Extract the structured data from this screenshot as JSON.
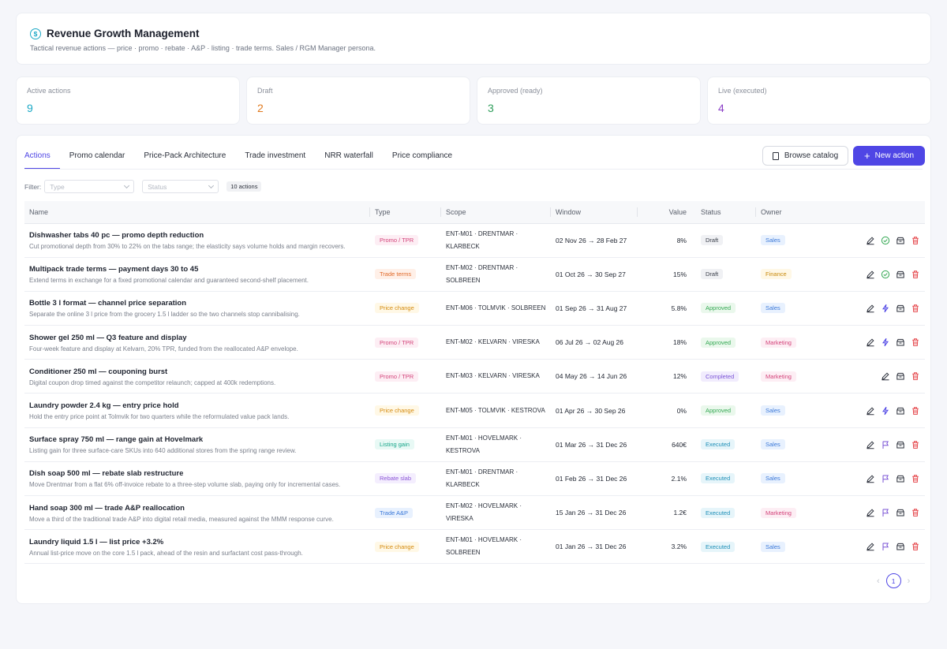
{
  "header": {
    "title": "Revenue Growth Management",
    "subtitle": "Tactical revenue actions — price · promo · rebate · A&P · listing · trade terms. Sales / RGM Manager persona."
  },
  "stats": [
    {
      "label": "Active actions",
      "value": "9",
      "color": "#1ba8c6"
    },
    {
      "label": "Draft",
      "value": "2",
      "color": "#e07a1f"
    },
    {
      "label": "Approved (ready)",
      "value": "3",
      "color": "#2f9e5b"
    },
    {
      "label": "Live (executed)",
      "value": "4",
      "color": "#8b3fc7"
    }
  ],
  "tabs": [
    "Actions",
    "Promo calendar",
    "Price-Pack Architecture",
    "Trade investment",
    "NRR waterfall",
    "Price compliance"
  ],
  "buttons": {
    "browse_catalog": "Browse catalog",
    "new_action": "New action"
  },
  "filter": {
    "label": "Filter:",
    "type_placeholder": "Type",
    "status_placeholder": "Status",
    "count": "10 actions"
  },
  "columns": {
    "name": "Name",
    "type": "Type",
    "scope": "Scope",
    "window": "Window",
    "value": "Value",
    "status": "Status",
    "owner": "Owner"
  },
  "rows": [
    {
      "name": "Dishwasher tabs 40 pc — promo depth reduction",
      "desc": "Cut promotional depth from 30% to 22% on the tabs range; the elasticity says volume holds and margin recovers.",
      "type": "Promo / TPR",
      "scope1": "ENT-M01 · DRENTMAR ·",
      "scope2": "KLARBECK",
      "window": "02 Nov 26 → 28 Feb 27",
      "value": "8%",
      "status": "Draft",
      "owner": "Sales"
    },
    {
      "name": "Multipack trade terms — payment days 30 to 45",
      "desc": "Extend terms in exchange for a fixed promotional calendar and guaranteed second-shelf placement.",
      "type": "Trade terms",
      "scope1": "ENT-M02 · DRENTMAR ·",
      "scope2": "SOLBREEN",
      "window": "01 Oct 26 → 30 Sep 27",
      "value": "15%",
      "status": "Draft",
      "owner": "Finance"
    },
    {
      "name": "Bottle 3 l format — channel price separation",
      "desc": "Separate the online 3 l price from the grocery 1.5 l ladder so the two channels stop cannibalising.",
      "type": "Price change",
      "scope1": "ENT-M06 · TOLMVIK · SOLBREEN",
      "scope2": "",
      "window": "01 Sep 26 → 31 Aug 27",
      "value": "5.8%",
      "status": "Approved",
      "owner": "Sales"
    },
    {
      "name": "Shower gel 250 ml — Q3 feature and display",
      "desc": "Four-week feature and display at Kelvarn, 20% TPR, funded from the reallocated A&P envelope.",
      "type": "Promo / TPR",
      "scope1": "ENT-M02 · KELVARN · VIRESKA",
      "scope2": "",
      "window": "06 Jul 26 → 02 Aug 26",
      "value": "18%",
      "status": "Approved",
      "owner": "Marketing"
    },
    {
      "name": "Conditioner 250 ml — couponing burst",
      "desc": "Digital coupon drop timed against the competitor relaunch; capped at 400k redemptions.",
      "type": "Promo / TPR",
      "scope1": "ENT-M03 · KELVARN · VIRESKA",
      "scope2": "",
      "window": "04 May 26 → 14 Jun 26",
      "value": "12%",
      "status": "Completed",
      "owner": "Marketing"
    },
    {
      "name": "Laundry powder 2.4 kg — entry price hold",
      "desc": "Hold the entry price point at Tolmvik for two quarters while the reformulated value pack lands.",
      "type": "Price change",
      "scope1": "ENT-M05 · TOLMVIK · KESTROVA",
      "scope2": "",
      "window": "01 Apr 26 → 30 Sep 26",
      "value": "0%",
      "status": "Approved",
      "owner": "Sales"
    },
    {
      "name": "Surface spray 750 ml — range gain at Hovelmark",
      "desc": "Listing gain for three surface-care SKUs into 640 additional stores from the spring range review.",
      "type": "Listing gain",
      "scope1": "ENT-M01 · HOVELMARK ·",
      "scope2": "KESTROVA",
      "window": "01 Mar 26 → 31 Dec 26",
      "value": "640€",
      "status": "Executed",
      "owner": "Sales"
    },
    {
      "name": "Dish soap 500 ml — rebate slab restructure",
      "desc": "Move Drentmar from a flat 6% off-invoice rebate to a three-step volume slab, paying only for incremental cases.",
      "type": "Rebate slab",
      "scope1": "ENT-M01 · DRENTMAR ·",
      "scope2": "KLARBECK",
      "window": "01 Feb 26 → 31 Dec 26",
      "value": "2.1%",
      "status": "Executed",
      "owner": "Sales"
    },
    {
      "name": "Hand soap 300 ml — trade A&P reallocation",
      "desc": "Move a third of the traditional trade A&P into digital retail media, measured against the MMM response curve.",
      "type": "Trade A&P",
      "scope1": "ENT-M02 · HOVELMARK ·",
      "scope2": "VIRESKA",
      "window": "15 Jan 26 → 31 Dec 26",
      "value": "1.2€",
      "status": "Executed",
      "owner": "Marketing"
    },
    {
      "name": "Laundry liquid 1.5 l — list price +3.2%",
      "desc": "Annual list-price move on the core 1.5 l pack, ahead of the resin and surfactant cost pass-through.",
      "type": "Price change",
      "scope1": "ENT-M01 · HOVELMARK ·",
      "scope2": "SOLBREEN",
      "window": "01 Jan 26 → 31 Dec 26",
      "value": "3.2%",
      "status": "Executed",
      "owner": "Sales"
    }
  ],
  "pager": {
    "current": "1"
  }
}
